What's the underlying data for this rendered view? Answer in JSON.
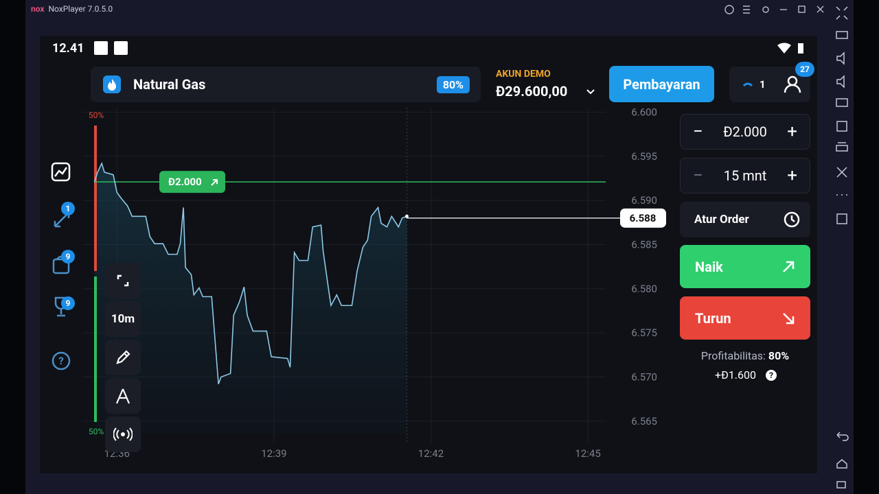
{
  "window": {
    "title": "NoxPlayer 7.0.5.0"
  },
  "status_bar": {
    "time": "12.41"
  },
  "asset": {
    "name": "Natural Gas",
    "payout": "80%"
  },
  "account": {
    "label": "AKUN DEMO",
    "balance": "Đ29.600,00"
  },
  "deposit_button": "Pembayaran",
  "open_trades": "1",
  "notifications": "27",
  "sidebar_badges": [
    "1",
    "9",
    "9"
  ],
  "chart": {
    "type": "line",
    "color": "#8ec9e6",
    "ylim": [
      6.5625,
      6.6005
    ],
    "yticks": [
      {
        "value": 6.6,
        "label": "6.600"
      },
      6.595,
      {
        "value": 6.59,
        "label": "6.590"
      },
      6.585,
      {
        "value": 6.58,
        "label": "6.580"
      },
      6.575,
      {
        "value": 6.57,
        "label": "6.570"
      },
      6.565
    ],
    "xlim": [
      755.34,
      765.34
    ],
    "xticks": [
      {
        "value": 756,
        "label": "12:36"
      },
      {
        "value": 759,
        "label": "12:39"
      },
      {
        "value": 762,
        "label": "12:42"
      },
      {
        "value": 765,
        "label": "12:45"
      }
    ],
    "x": [
      755.57,
      755.63,
      755.71,
      755.76,
      755.93,
      756,
      756.1,
      756.2,
      756.29,
      756.55,
      756.63,
      756.72,
      756.88,
      756.98,
      757.15,
      757.21,
      757.27,
      757.31,
      757.42,
      757.47,
      757.57,
      757.64,
      757.81,
      757.94,
      757.99,
      758.17,
      758.23,
      758.34,
      758.43,
      758.49,
      758.6,
      758.86,
      758.95,
      759.26,
      759.31,
      759.39,
      759.48,
      759.65,
      759.74,
      759.9,
      759.94,
      760.04,
      760.09,
      760.2,
      760.29,
      760.49,
      760.59,
      760.7,
      760.79,
      760.86,
      760.99,
      761.05,
      761.16,
      761.25,
      761.38,
      761.45,
      761.54
    ],
    "values": [
      6.5921,
      6.5932,
      6.5942,
      6.5932,
      6.5929,
      6.5909,
      6.5901,
      6.5894,
      6.5882,
      6.5882,
      6.5859,
      6.5851,
      6.5851,
      6.5839,
      6.5839,
      6.5851,
      6.5892,
      6.5824,
      6.5816,
      6.5793,
      6.5801,
      6.5791,
      6.5791,
      6.5692,
      6.57,
      6.5704,
      6.577,
      6.5785,
      6.5802,
      6.577,
      6.5752,
      6.5752,
      6.5723,
      6.5721,
      6.5711,
      6.5841,
      6.5832,
      6.5832,
      6.587,
      6.5872,
      6.5843,
      6.5801,
      6.5781,
      6.5793,
      6.5781,
      6.5781,
      6.582,
      6.5847,
      6.5855,
      6.5882,
      6.5892,
      6.5874,
      6.587,
      6.5882,
      6.587,
      6.588,
      6.5882
    ],
    "current_price": 6.588,
    "order": {
      "amount": "Đ2.000",
      "price": 6.5921
    },
    "sentiment": {
      "down": "50%",
      "up": "50%"
    },
    "timeframe": "10m"
  },
  "trade_panel": {
    "amount": "Đ2.000",
    "duration": "15 mnt",
    "order_button": "Atur Order",
    "up_button": "Naik",
    "down_button": "Turun",
    "profitability_label": "Profitabilitas:",
    "profitability_value": "80%",
    "profit": "+Đ1.600"
  }
}
